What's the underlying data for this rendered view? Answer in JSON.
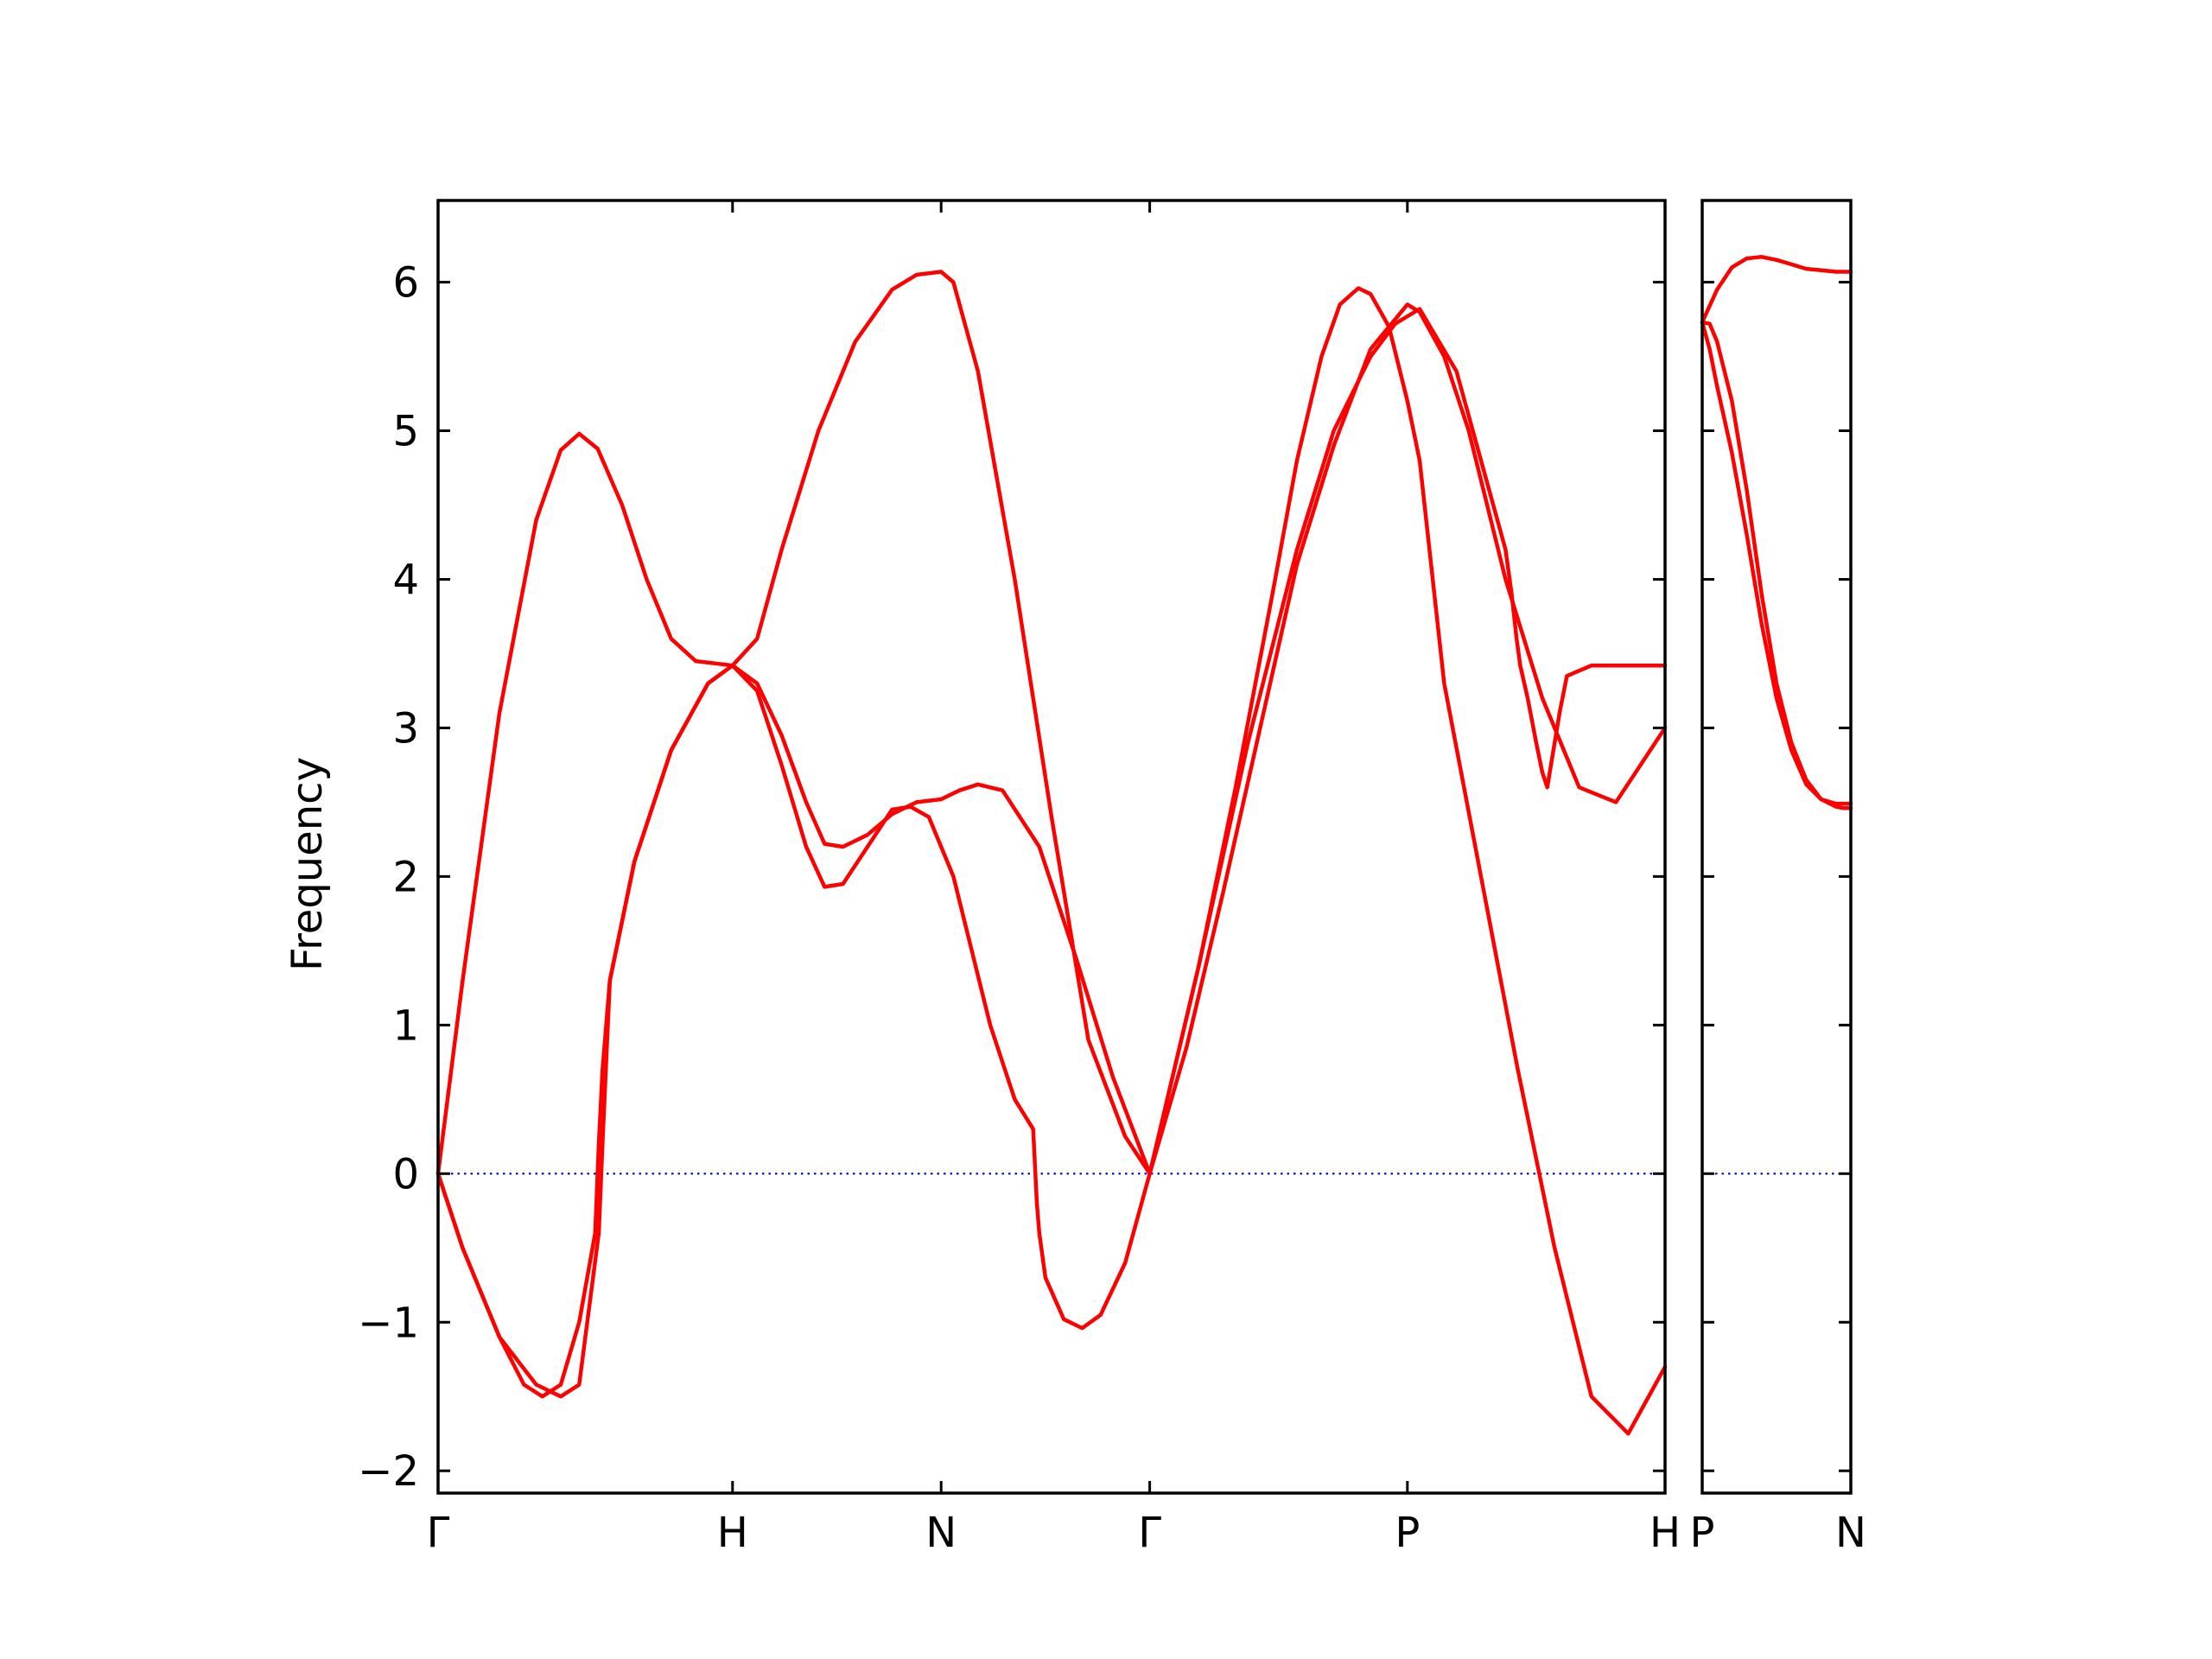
{
  "chart_data": {
    "type": "line",
    "ylabel": "Frequency",
    "ylim": [
      -2.15,
      6.55
    ],
    "y_ticks": [
      -2,
      -1,
      0,
      1,
      2,
      3,
      4,
      5,
      6
    ],
    "y_tick_labels": [
      "−2",
      "−1",
      "0",
      "1",
      "2",
      "3",
      "4",
      "5",
      "6"
    ],
    "line_color": "#ff0000",
    "zero_line_color": "#0000cc",
    "panels": [
      {
        "xlim": [
          0,
          1
        ],
        "high_symmetry_points": [
          {
            "label": "Γ",
            "x": 0
          },
          {
            "label": "H",
            "x": 0.24
          },
          {
            "label": "N",
            "x": 0.41
          },
          {
            "label": "Γ",
            "x": 0.58
          },
          {
            "label": "P",
            "x": 0.79
          },
          {
            "label": "H",
            "x": 1
          }
        ],
        "series": [
          {
            "x": [
              0,
              0.02,
              0.05,
              0.08,
              0.1,
              0.115,
              0.13,
              0.15,
              0.17,
              0.19,
              0.21,
              0.24
            ],
            "y": [
              0,
              1.3,
              3.1,
              4.4,
              4.87,
              4.98,
              4.88,
              4.5,
              4.0,
              3.6,
              3.45,
              3.42
            ]
          },
          {
            "x": [
              0,
              0.02,
              0.05,
              0.07,
              0.085,
              0.1,
              0.115,
              0.128,
              0.131,
              0.134,
              0.14,
              0.16,
              0.19,
              0.22,
              0.24
            ],
            "y": [
              0,
              -0.5,
              -1.1,
              -1.42,
              -1.5,
              -1.42,
              -1.0,
              -0.4,
              0.2,
              0.7,
              1.3,
              2.1,
              2.85,
              3.3,
              3.42
            ]
          },
          {
            "x": [
              0,
              0.02,
              0.05,
              0.08,
              0.1,
              0.115,
              0.131,
              0.134,
              0.14,
              0.16,
              0.19,
              0.22,
              0.24
            ],
            "y": [
              0,
              -0.5,
              -1.1,
              -1.42,
              -1.5,
              -1.42,
              -0.4,
              0.2,
              1.3,
              2.1,
              2.85,
              3.3,
              3.42
            ]
          },
          {
            "x": [
              0.24,
              0.26,
              0.28,
              0.31,
              0.34,
              0.37,
              0.39,
              0.41,
              0.42,
              0.44,
              0.47,
              0.5,
              0.53,
              0.56,
              0.58
            ],
            "y": [
              3.42,
              3.6,
              4.2,
              5.0,
              5.6,
              5.95,
              6.05,
              6.07,
              6.0,
              5.4,
              4.0,
              2.4,
              0.9,
              0.25,
              0
            ]
          },
          {
            "x": [
              0.24,
              0.26,
              0.28,
              0.3,
              0.315,
              0.33,
              0.35,
              0.37,
              0.39,
              0.41,
              0.425,
              0.44,
              0.46,
              0.49,
              0.52,
              0.55,
              0.58
            ],
            "y": [
              3.42,
              3.3,
              2.95,
              2.5,
              2.22,
              2.2,
              2.28,
              2.42,
              2.5,
              2.52,
              2.58,
              2.62,
              2.58,
              2.2,
              1.45,
              0.65,
              0
            ]
          },
          {
            "x": [
              0.24,
              0.26,
              0.28,
              0.3,
              0.315,
              0.33,
              0.35,
              0.37,
              0.385,
              0.4,
              0.42,
              0.45,
              0.47,
              0.485,
              0.488,
              0.49,
              0.495,
              0.51,
              0.525,
              0.54,
              0.56,
              0.58
            ],
            "y": [
              3.42,
              3.25,
              2.75,
              2.2,
              1.93,
              1.95,
              2.2,
              2.45,
              2.47,
              2.4,
              2.0,
              1.0,
              0.5,
              0.3,
              -0.2,
              -0.4,
              -0.7,
              -0.98,
              -1.04,
              -0.95,
              -0.6,
              0
            ]
          },
          {
            "x": [
              0.58,
              0.6,
              0.62,
              0.65,
              0.68,
              0.7,
              0.72,
              0.735,
              0.75,
              0.76,
              0.775,
              0.79,
              0.8,
              0.82,
              0.85,
              0.88,
              0.91,
              0.94,
              0.97,
              1.0
            ],
            "y": [
              0,
              0.7,
              1.4,
              2.6,
              3.9,
              4.8,
              5.5,
              5.85,
              5.96,
              5.92,
              5.7,
              5.2,
              4.8,
              3.3,
              2.0,
              0.7,
              -0.5,
              -1.5,
              -1.75,
              -1.3
            ]
          },
          {
            "x": [
              0.58,
              0.61,
              0.64,
              0.67,
              0.7,
              0.73,
              0.76,
              0.79,
              0.8,
              0.82,
              0.84,
              0.87,
              0.9,
              0.93,
              0.96,
              1.0
            ],
            "y": [
              0,
              0.85,
              1.9,
              3.0,
              4.1,
              4.9,
              5.55,
              5.85,
              5.8,
              5.5,
              5.0,
              4.0,
              3.2,
              2.6,
              2.5,
              3.0
            ]
          },
          {
            "x": [
              0.58,
              0.62,
              0.66,
              0.7,
              0.73,
              0.76,
              0.78,
              0.8,
              0.83,
              0.85,
              0.87,
              0.875,
              0.879,
              0.882,
              0.888,
              0.895,
              0.9,
              0.904,
              0.908,
              0.914,
              0.92,
              0.94,
              0.96,
              0.98,
              1.0
            ],
            "y": [
              0,
              1.4,
              2.9,
              4.2,
              5.0,
              5.5,
              5.72,
              5.82,
              5.4,
              4.8,
              4.2,
              3.9,
              3.6,
              3.42,
              3.2,
              2.9,
              2.7,
              2.6,
              2.8,
              3.1,
              3.35,
              3.42,
              3.42,
              3.42,
              3.42
            ]
          }
        ]
      },
      {
        "xlim": [
          0,
          1
        ],
        "high_symmetry_points": [
          {
            "label": "P",
            "x": 0
          },
          {
            "label": "N",
            "x": 1
          }
        ],
        "series": [
          {
            "x": [
              0,
              0.1,
              0.2,
              0.3,
              0.4,
              0.5,
              0.6,
              0.7,
              0.8,
              0.9,
              1.0
            ],
            "y": [
              5.73,
              5.95,
              6.1,
              6.16,
              6.17,
              6.15,
              6.12,
              6.09,
              6.08,
              6.07,
              6.07
            ]
          },
          {
            "x": [
              0,
              0.05,
              0.1,
              0.2,
              0.3,
              0.4,
              0.5,
              0.6,
              0.7,
              0.8,
              0.9,
              0.95,
              1.0
            ],
            "y": [
              5.73,
              5.72,
              5.6,
              5.2,
              4.6,
              3.9,
              3.3,
              2.9,
              2.65,
              2.52,
              2.47,
              2.46,
              2.46
            ]
          },
          {
            "x": [
              0,
              0.05,
              0.1,
              0.2,
              0.3,
              0.4,
              0.5,
              0.6,
              0.7,
              0.8,
              0.9,
              0.95,
              1.0
            ],
            "y": [
              5.73,
              5.55,
              5.3,
              4.85,
              4.3,
              3.7,
              3.2,
              2.85,
              2.62,
              2.52,
              2.49,
              2.49,
              2.49
            ]
          }
        ]
      }
    ]
  }
}
